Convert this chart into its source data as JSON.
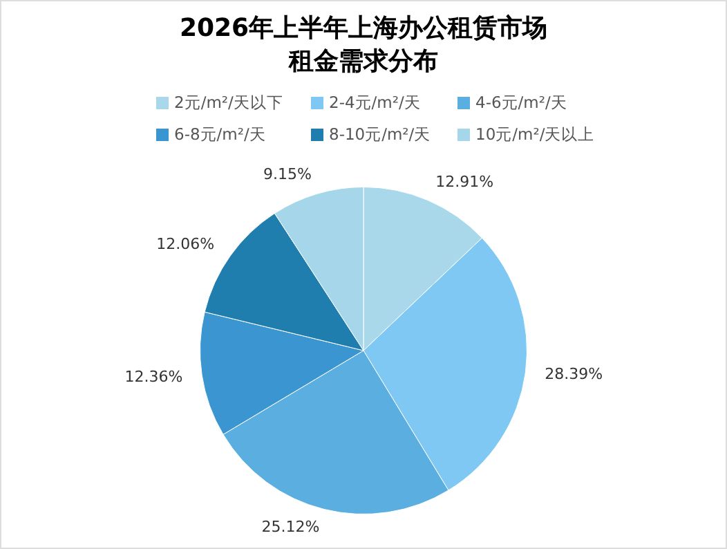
{
  "chart_data": {
    "type": "pie",
    "title": "2026年上半年上海办公租赁市场租金需求分布",
    "categories": [
      "2元/m²/天以下",
      "2-4元/m²/天",
      "4-6元/m²/天",
      "6-8元/m²/天",
      "8-10元/m²/天",
      "10元/m²/天以上"
    ],
    "values": [
      12.91,
      28.39,
      25.12,
      12.36,
      12.06,
      9.15
    ],
    "value_labels": [
      "12.91%",
      "28.39%",
      "25.12%",
      "12.36%",
      "12.06%",
      "9.15%"
    ],
    "colors": [
      "#a8d8ea",
      "#7ec8f3",
      "#5aafe0",
      "#3a95d0",
      "#1f7eae",
      "#a6d6ea"
    ],
    "legend": "top"
  }
}
